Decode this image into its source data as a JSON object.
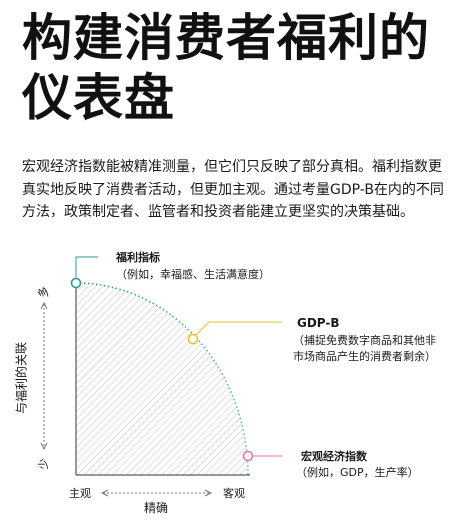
{
  "title": [
    "构建消费者福利的",
    "仪表盘"
  ],
  "intro": "宏观经济指数能被精准测量，但它们只反映了部分真相。福利指数更真实地反映了消费者活动，但更加主观。通过考量GDP-B在内的不同方法，政策制定者、监管者和投资者能建立更坚实的决策基础。",
  "diagram": {
    "y_axis": {
      "label": "与福利的关联",
      "top": "多",
      "bottom": "少"
    },
    "x_axis": {
      "label": "精确",
      "left": "主观",
      "right": "客观"
    },
    "points": [
      {
        "name": "福利指标",
        "desc": "（例如，幸福感、生活满意度）",
        "color": "#2a9d8f"
      },
      {
        "name": "GDP-B",
        "desc_line1": "（捕捉免费数字商品和其他非",
        "desc_line2": "市场商品产生的消费者剩余）",
        "color": "#e9c22a"
      },
      {
        "name": "宏观经济指数",
        "desc": "（例如，GDP，生产率）",
        "color": "#e8799a"
      }
    ]
  }
}
